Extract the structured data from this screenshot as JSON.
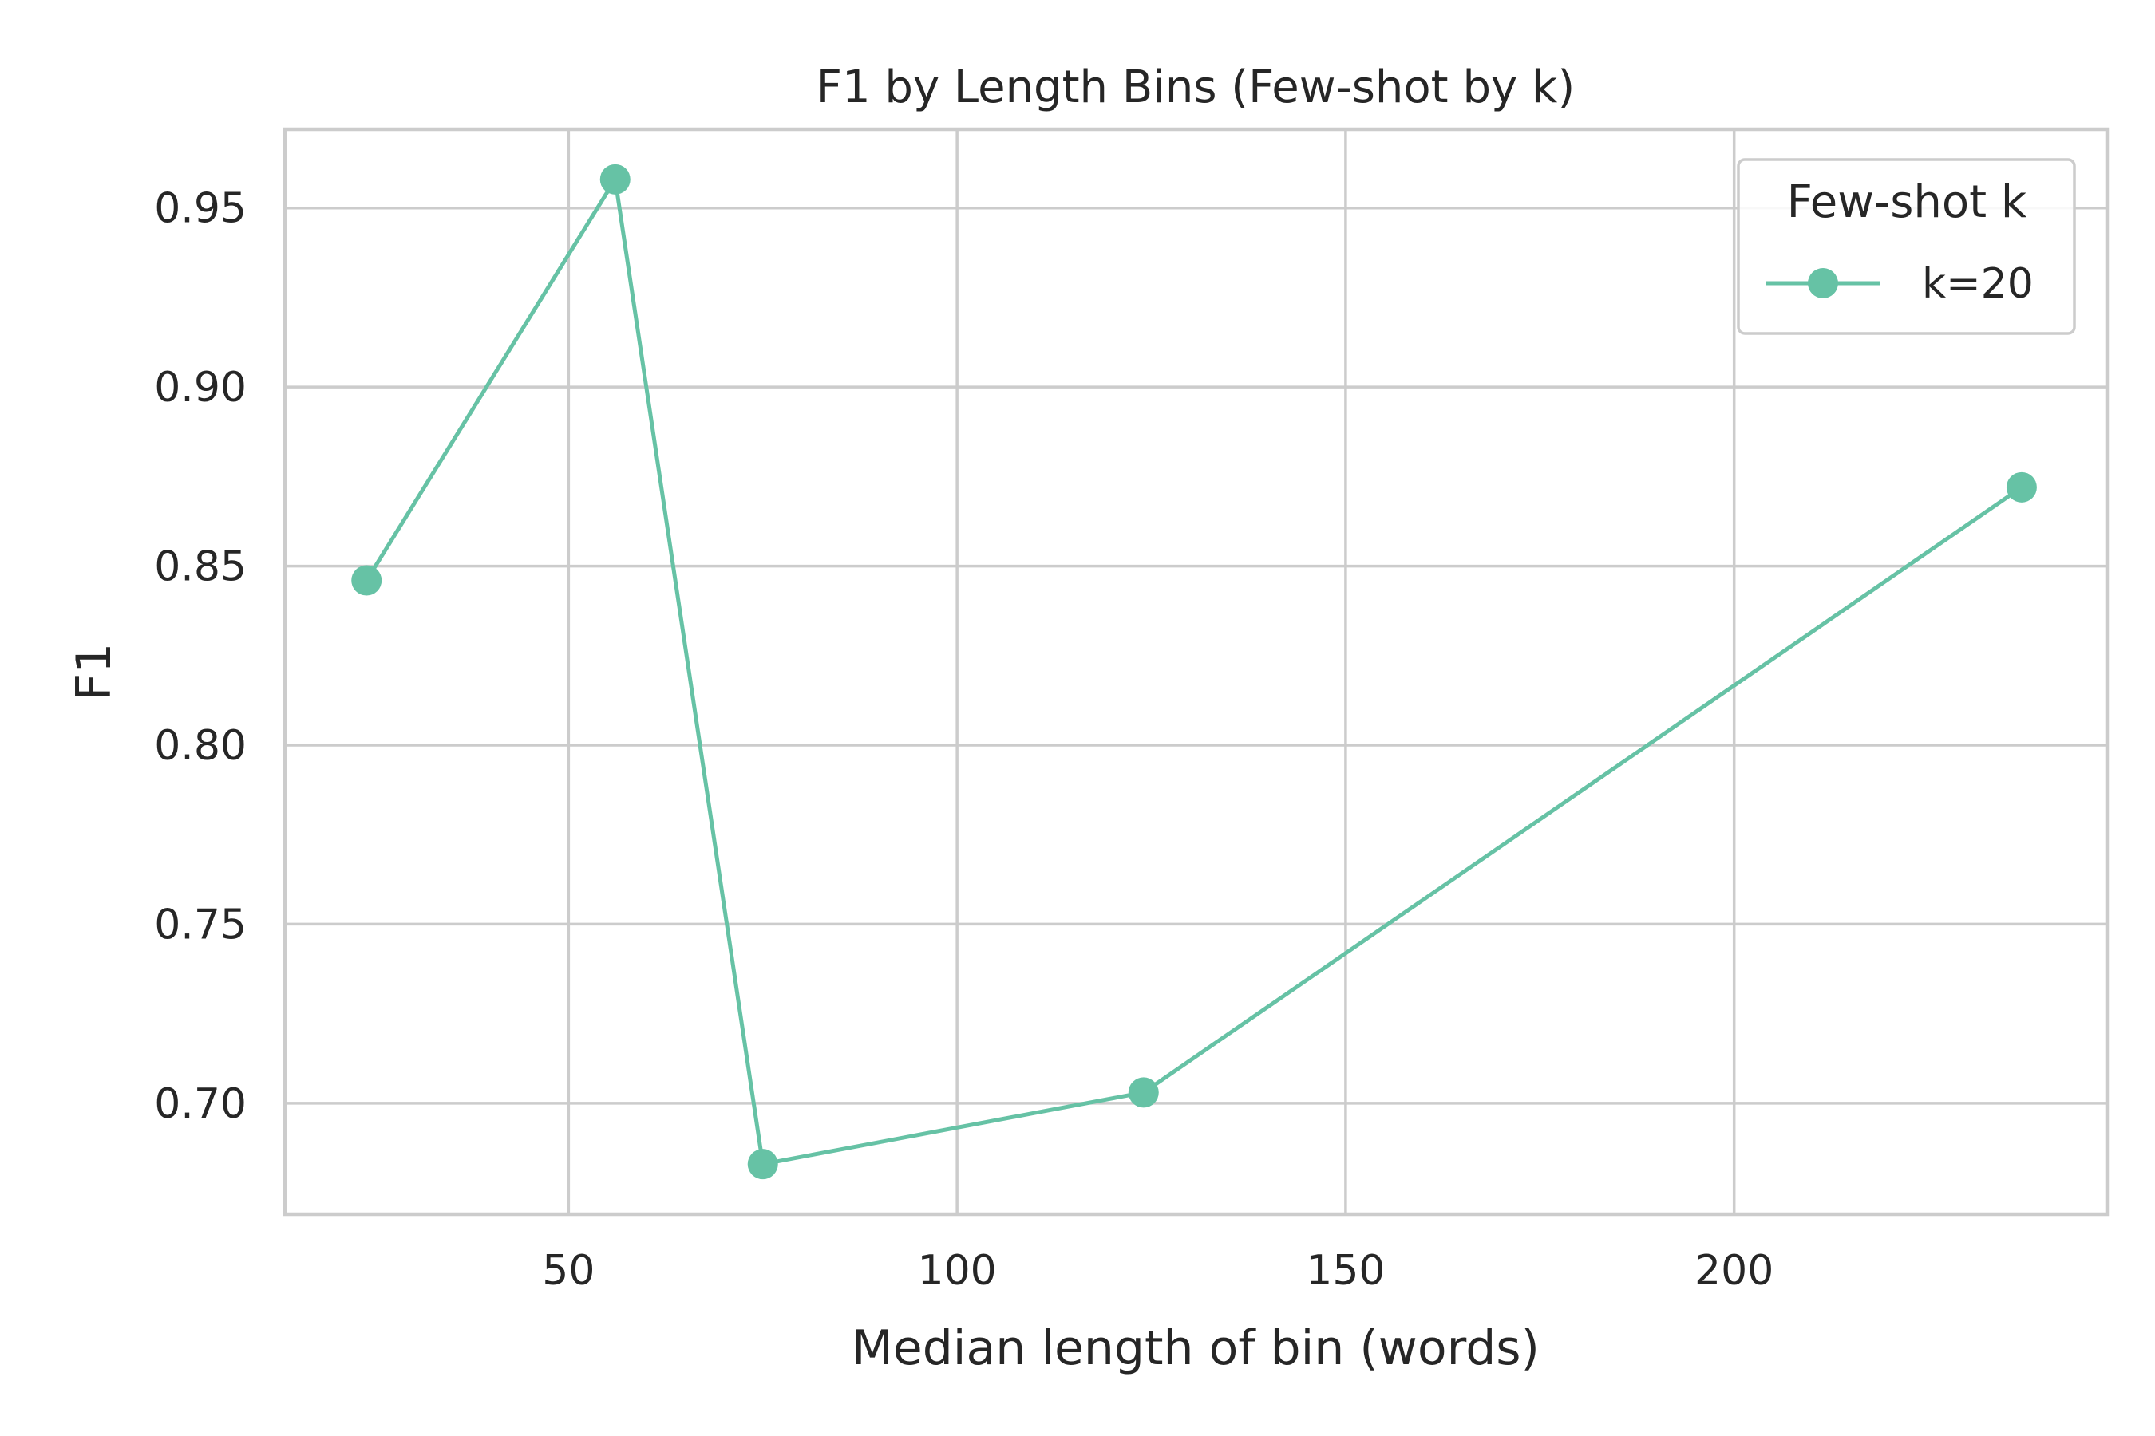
{
  "chart_data": {
    "type": "line",
    "title": "F1 by Length Bins (Few-shot by k)",
    "xlabel": "Median length of bin (words)",
    "ylabel": "F1",
    "xlim": [
      13.5,
      248.0
    ],
    "ylim": [
      0.669,
      0.972
    ],
    "x_ticks": [
      50,
      100,
      150,
      200
    ],
    "x_tick_labels": [
      "50",
      "100",
      "150",
      "200"
    ],
    "y_ticks": [
      0.7,
      0.75,
      0.8,
      0.85,
      0.9,
      0.95
    ],
    "y_tick_labels": [
      "0.70",
      "0.75",
      "0.80",
      "0.85",
      "0.90",
      "0.95"
    ],
    "grid": true,
    "legend": {
      "title": "Few-shot k",
      "placement": "top-right"
    },
    "series": [
      {
        "name": "k=20",
        "color": "#66c2a5",
        "x": [
          24,
          56,
          75,
          124,
          237
        ],
        "y": [
          0.846,
          0.958,
          0.683,
          0.703,
          0.872
        ]
      }
    ]
  }
}
